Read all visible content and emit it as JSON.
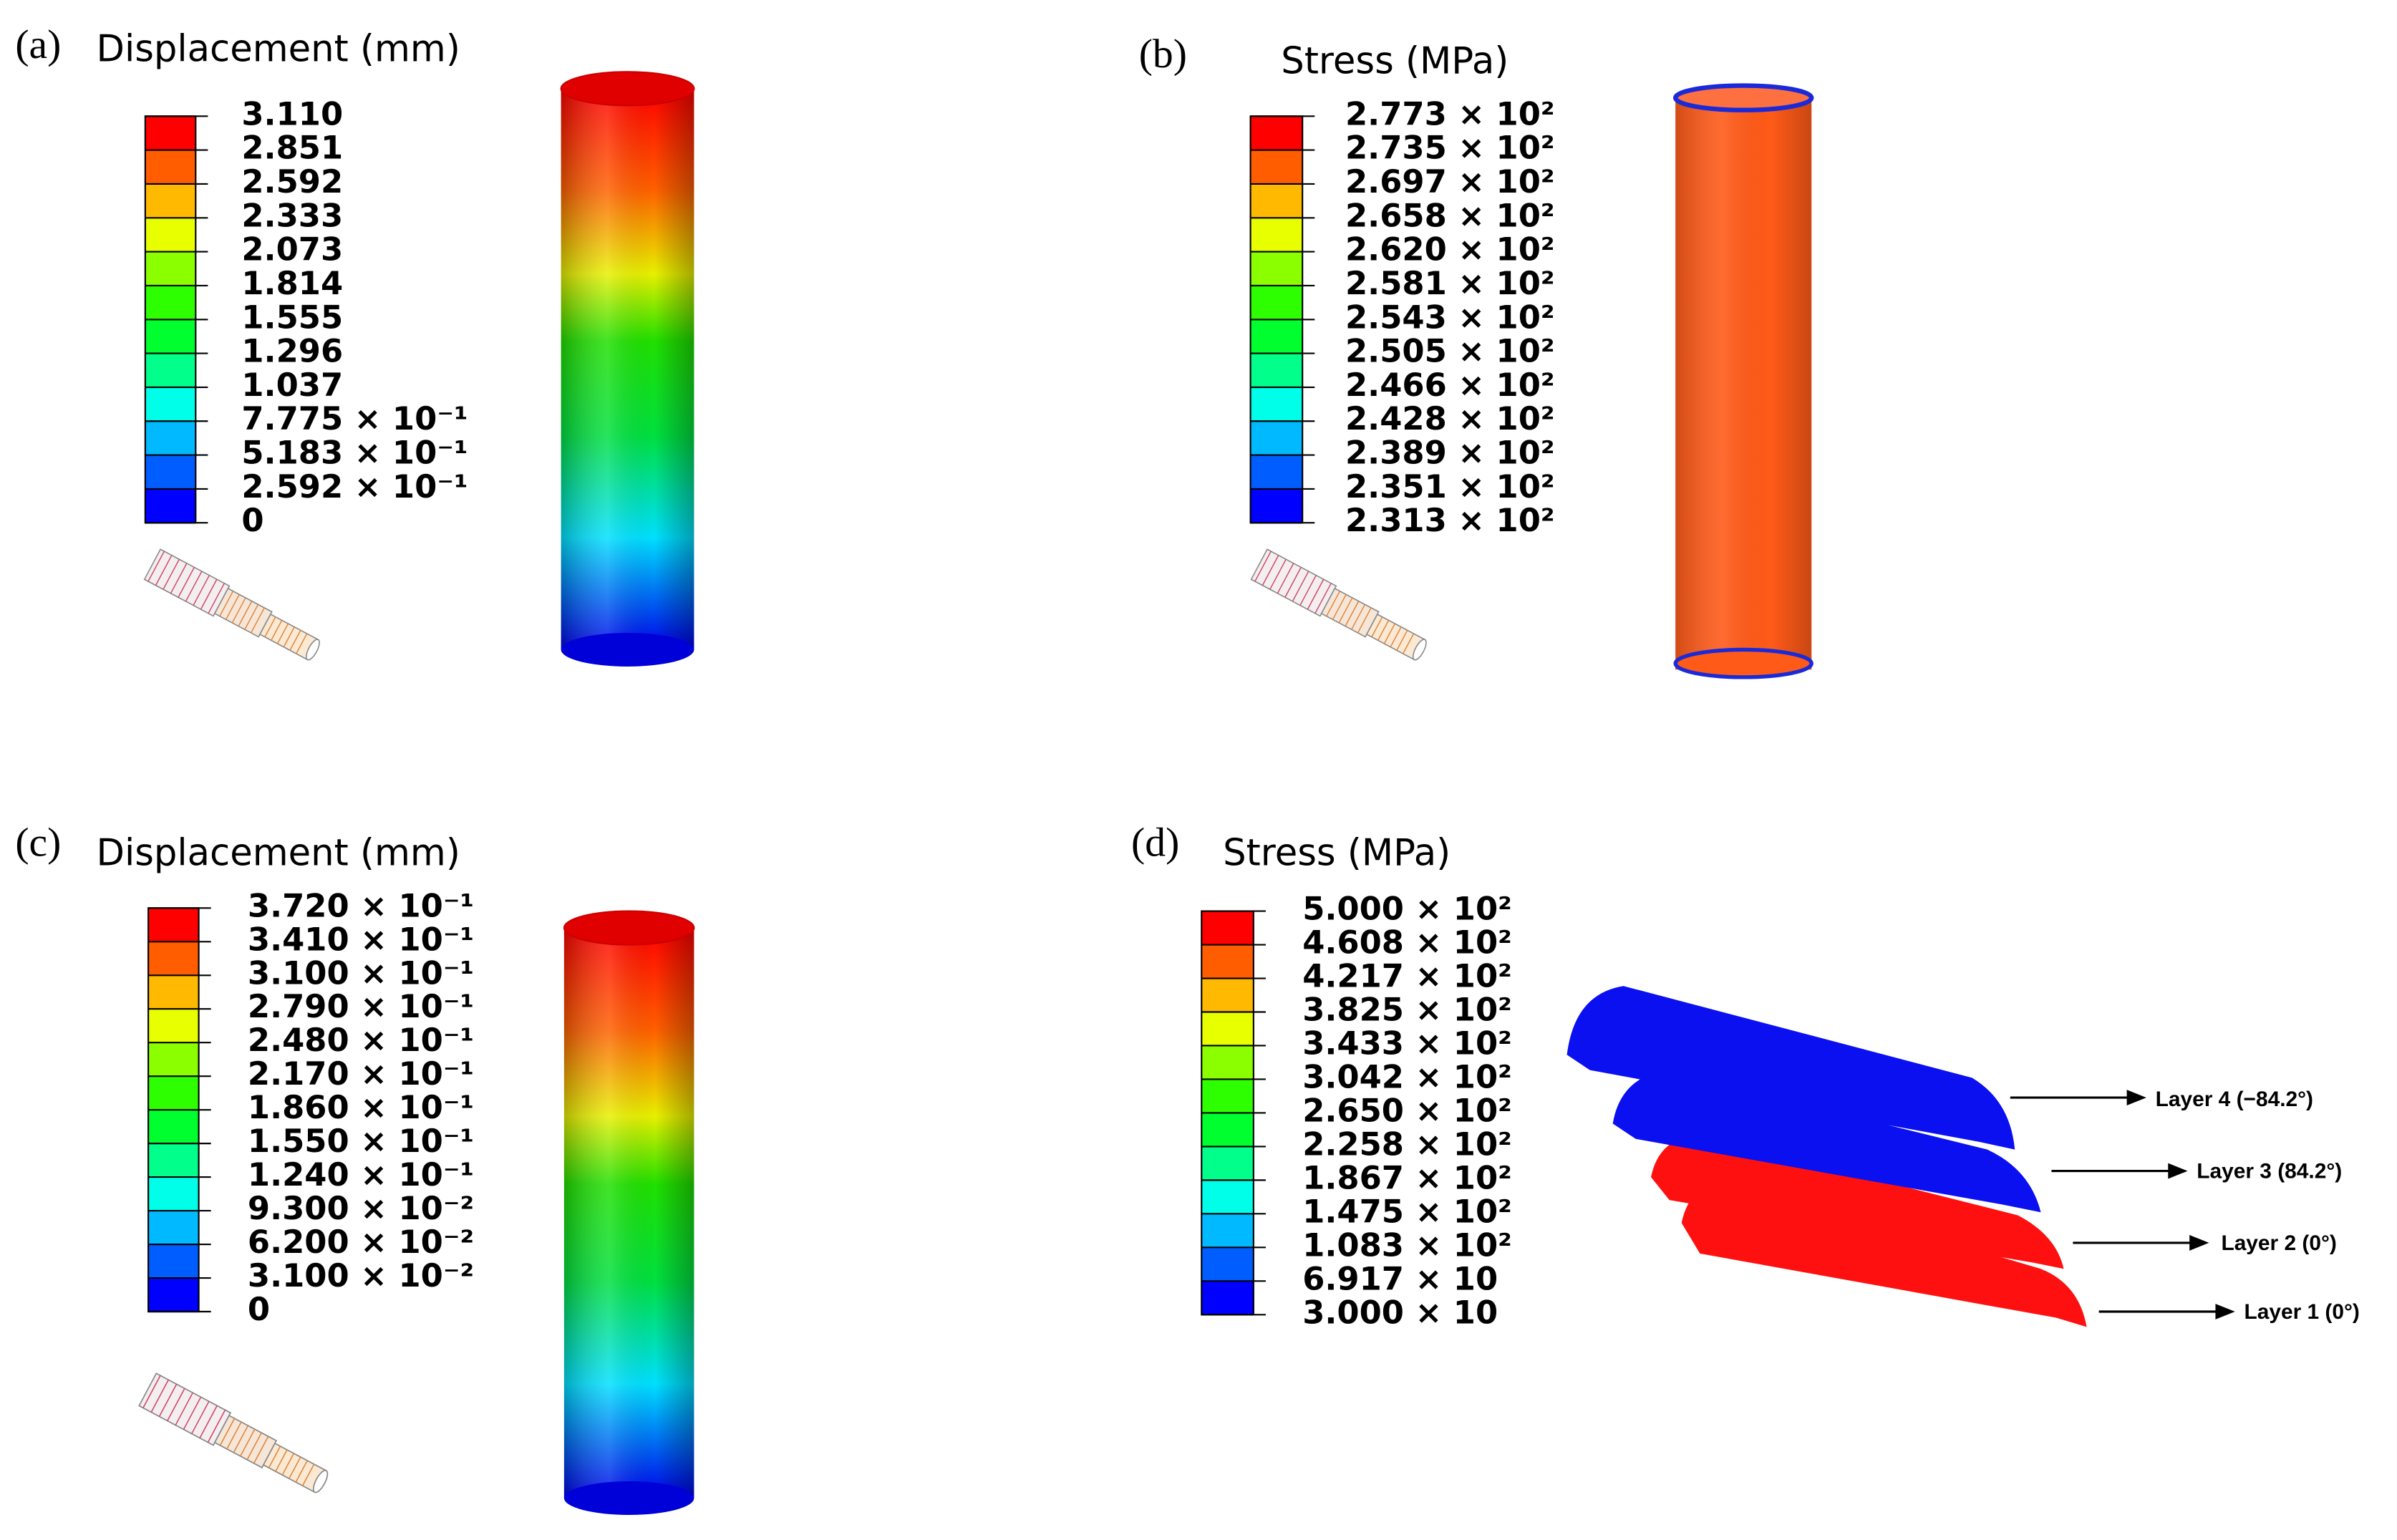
{
  "panels": [
    {
      "tag": "(a)",
      "title": "Displacement (mm)",
      "labels": [
        "3.110",
        "2.851",
        "2.592",
        "2.333",
        "2.073",
        "1.814",
        "1.555",
        "1.296",
        "1.037",
        "7.775 × 10⁻¹",
        "5.183 × 10⁻¹",
        "2.592 × 10⁻¹",
        "0"
      ]
    },
    {
      "tag": "(b)",
      "title": "Stress (MPa)",
      "labels": [
        "2.773 × 10²",
        "2.735 × 10²",
        "2.697 × 10²",
        "2.658 × 10²",
        "2.620 × 10²",
        "2.581 × 10²",
        "2.543 × 10²",
        "2.505 × 10²",
        "2.466 × 10²",
        "2.428 × 10²",
        "2.389 × 10²",
        "2.351 × 10²",
        "2.313 × 10²"
      ]
    },
    {
      "tag": "(c)",
      "title": "Displacement (mm)",
      "labels": [
        "3.720 × 10⁻¹",
        "3.410 × 10⁻¹",
        "3.100 × 10⁻¹",
        "2.790 × 10⁻¹",
        "2.480 × 10⁻¹",
        "2.170 × 10⁻¹",
        "1.860 × 10⁻¹",
        "1.550 × 10⁻¹",
        "1.240 × 10⁻¹",
        "9.300 × 10⁻²",
        "6.200 × 10⁻²",
        "3.100 × 10⁻²",
        "0"
      ]
    },
    {
      "tag": "(d)",
      "title": "Stress (MPa)",
      "labels": [
        "5.000 × 10²",
        "4.608 × 10²",
        "4.217 × 10²",
        "3.825 × 10²",
        "3.433 × 10²",
        "3.042 × 10²",
        "2.650 × 10²",
        "2.258 × 10²",
        "1.867 × 10²",
        "1.475 × 10²",
        "1.083 × 10²",
        "6.917 × 10",
        "3.000 × 10"
      ],
      "layers": [
        "Layer 4 (−84.2°)",
        "Layer 3 (84.2°)",
        "Layer 2 (0°)",
        "Layer 1 (0°)"
      ]
    }
  ]
}
